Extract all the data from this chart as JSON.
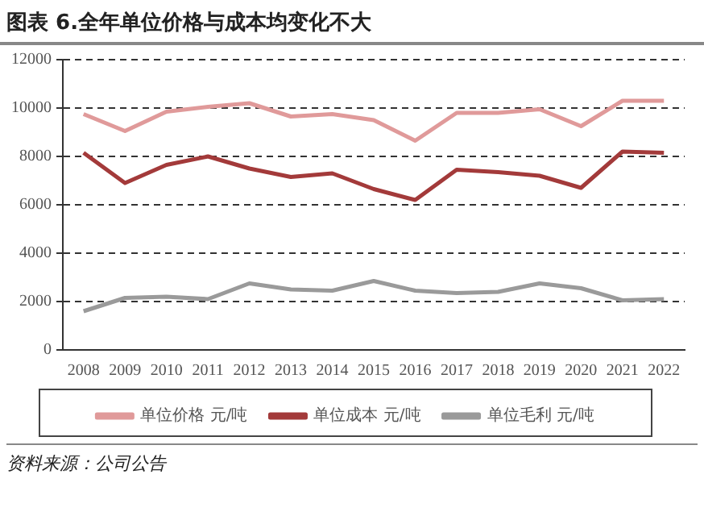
{
  "chart_data": {
    "type": "line",
    "title": "图表 6.全年单位价格与成本均变化不大",
    "categories": [
      "2008",
      "2009",
      "2010",
      "2011",
      "2012",
      "2013",
      "2014",
      "2015",
      "2016",
      "2017",
      "2018",
      "2019",
      "2020",
      "2021",
      "2022"
    ],
    "series": [
      {
        "name": "单位价格 元/吨",
        "color": "#e09a9a",
        "values": [
          9750,
          9050,
          9850,
          10050,
          10200,
          9650,
          9750,
          9500,
          8650,
          9800,
          9800,
          9950,
          9250,
          10300,
          10300
        ]
      },
      {
        "name": "单位成本 元/吨",
        "color": "#a33a3a",
        "values": [
          8150,
          6900,
          7650,
          8000,
          7500,
          7150,
          7300,
          6650,
          6200,
          7450,
          7350,
          7200,
          6700,
          8200,
          8150
        ]
      },
      {
        "name": "单位毛利 元/吨",
        "color": "#9a9a9a",
        "values": [
          1600,
          2150,
          2200,
          2100,
          2750,
          2500,
          2450,
          2850,
          2450,
          2350,
          2400,
          2750,
          2550,
          2050,
          2100
        ]
      }
    ],
    "ylim": [
      0,
      12000
    ],
    "yticks": [
      0,
      2000,
      4000,
      6000,
      8000,
      10000,
      12000
    ],
    "grid": "y",
    "legend": "bottom",
    "marker": "none",
    "line_style": "solid",
    "annotations": [
      "资料来源：公司公告"
    ]
  }
}
